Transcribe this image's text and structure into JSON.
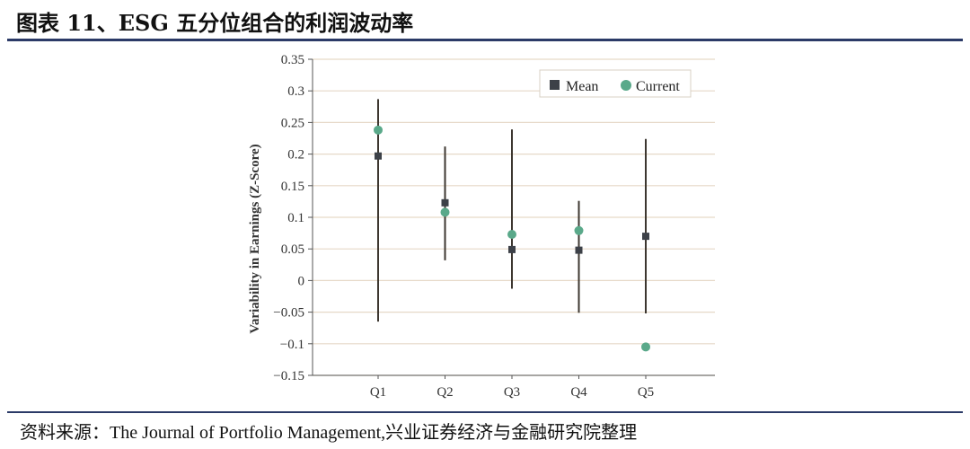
{
  "header": {
    "title": "图表 11、ESG 五分位组合的利润波动率"
  },
  "footer": {
    "source": "资料来源：The Journal of Portfolio Management,兴业证券经济与金融研究院整理"
  },
  "colors": {
    "mean": "#3d4148",
    "current": "#5aa98a",
    "grid": "#e6d9c8",
    "line": "#3d3730",
    "rule": "#2b3a67"
  },
  "chart_data": {
    "type": "scatter",
    "title": "",
    "xlabel": "",
    "ylabel": "Variability in Earnings (Z-Score)",
    "ylim": [
      -0.15,
      0.35
    ],
    "yticks": [
      {
        "value": 0.35,
        "label": "0.35"
      },
      {
        "value": 0.3,
        "label": "0.3"
      },
      {
        "value": 0.25,
        "label": "0.25"
      },
      {
        "value": 0.2,
        "label": "0.2"
      },
      {
        "value": 0.15,
        "label": "0.15"
      },
      {
        "value": 0.1,
        "label": "0.1"
      },
      {
        "value": 0.05,
        "label": "0.05"
      },
      {
        "value": 0,
        "label": "0"
      },
      {
        "value": -0.05,
        "label": "−0.05"
      },
      {
        "value": -0.1,
        "label": "−0.1"
      },
      {
        "value": -0.15,
        "label": "−0.15"
      }
    ],
    "categories": [
      "Q1",
      "Q2",
      "Q3",
      "Q4",
      "Q5"
    ],
    "range_low": [
      -0.065,
      0.032,
      -0.013,
      -0.051,
      -0.052
    ],
    "range_high": [
      0.287,
      0.212,
      0.239,
      0.126,
      0.224
    ],
    "series": [
      {
        "name": "Mean",
        "marker": "square",
        "values": [
          0.197,
          0.123,
          0.049,
          0.048,
          0.07
        ]
      },
      {
        "name": "Current",
        "marker": "circle",
        "values": [
          0.238,
          0.108,
          0.073,
          0.079,
          -0.105
        ]
      }
    ],
    "legend": {
      "position": "top-right"
    },
    "grid": true
  }
}
